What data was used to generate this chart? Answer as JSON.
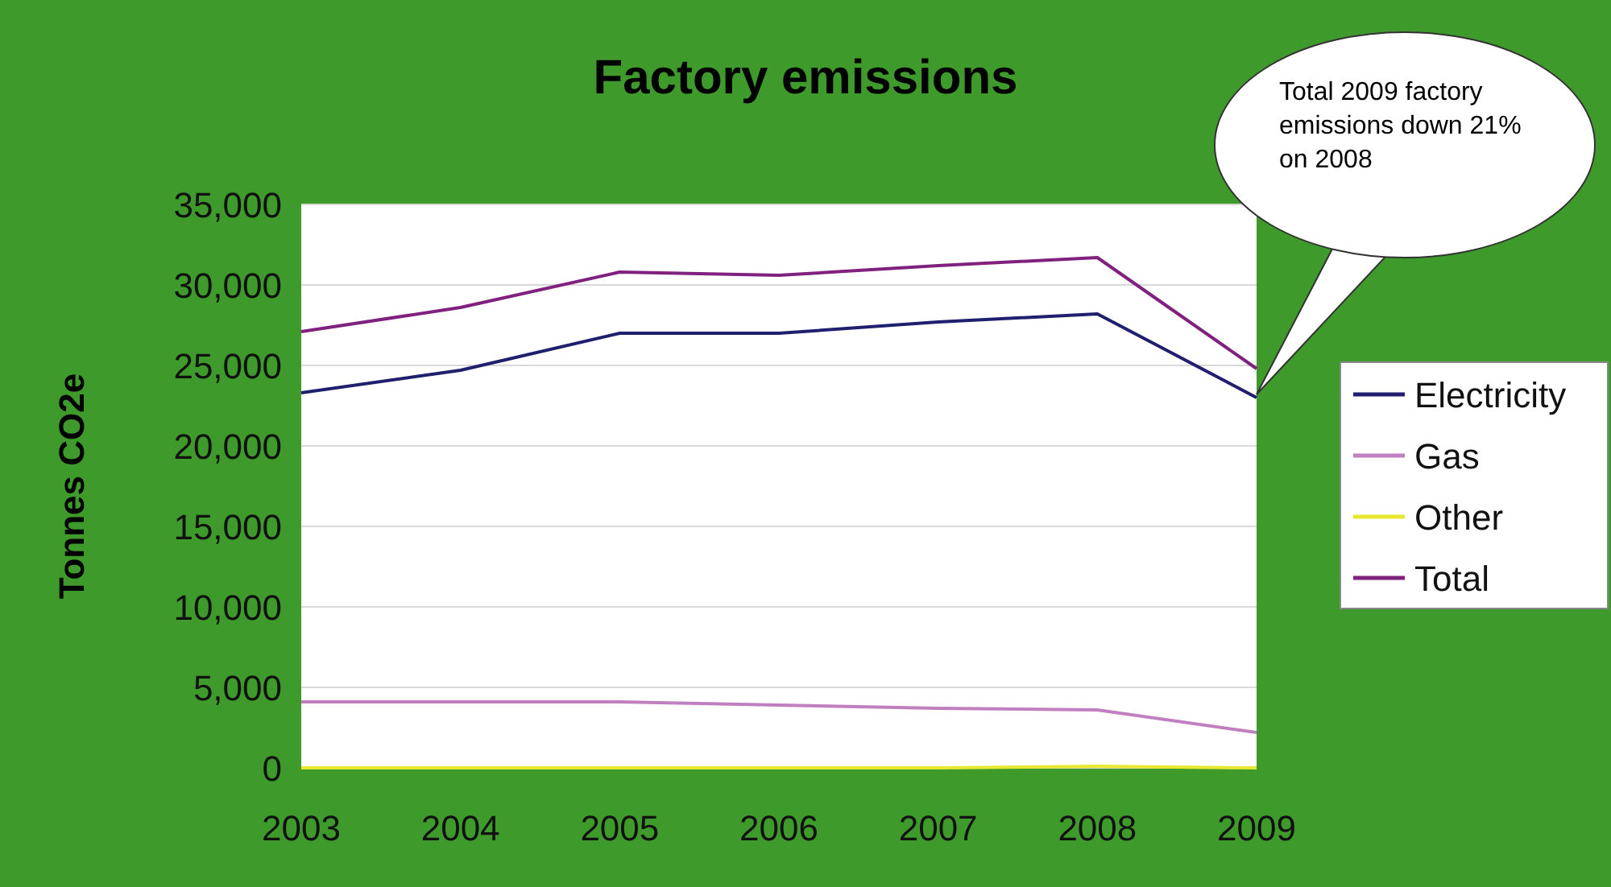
{
  "chart_data": {
    "type": "line",
    "title": "Factory emissions",
    "ylabel": "Tonnes CO2e",
    "x": [
      2003,
      2004,
      2005,
      2006,
      2007,
      2008,
      2009
    ],
    "xlim": [
      2003,
      2009
    ],
    "xticks": [
      2003,
      2004,
      2005,
      2006,
      2007,
      2008,
      2009
    ],
    "ylim": [
      0,
      35000
    ],
    "yticks": [
      {
        "value": 0,
        "label": "0"
      },
      {
        "value": 5000,
        "label": "5,000"
      },
      {
        "value": 10000,
        "label": "10,000"
      },
      {
        "value": 15000,
        "label": "15,000"
      },
      {
        "value": 20000,
        "label": "20,000"
      },
      {
        "value": 25000,
        "label": "25,000"
      },
      {
        "value": 30000,
        "label": "30,000"
      },
      {
        "value": 35000,
        "label": "35,000"
      }
    ],
    "grid": "y",
    "legend": "right",
    "marker": "none",
    "series": [
      {
        "name": "Electricity",
        "color": "#1f1f6e",
        "values": [
          23300,
          24700,
          27000,
          27000,
          27700,
          28200,
          23000
        ]
      },
      {
        "name": "Gas",
        "color": "#c080c0",
        "values": [
          4100,
          4100,
          4100,
          3900,
          3700,
          3600,
          2200
        ]
      },
      {
        "name": "Other",
        "color": "#e8e830",
        "values": [
          0,
          0,
          0,
          0,
          0,
          100,
          0
        ]
      },
      {
        "name": "Total",
        "color": "#80207f",
        "values": [
          27100,
          28600,
          30800,
          30600,
          31200,
          31700,
          24800
        ]
      }
    ],
    "annotations": [
      "Total 2009 factory emissions down 21% on 2008"
    ]
  }
}
